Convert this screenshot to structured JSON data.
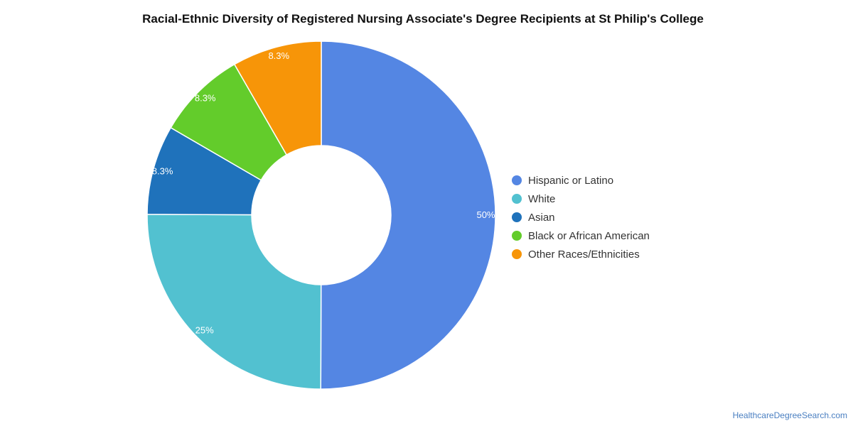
{
  "chart_data": {
    "type": "pie",
    "variant": "donut",
    "title": "Racial-Ethnic Diversity of Registered Nursing Associate's Degree Recipients at St Philip's College",
    "categories": [
      "Hispanic or Latino",
      "White",
      "Asian",
      "Black or African American",
      "Other Races/Ethnicities"
    ],
    "values": [
      50,
      25,
      8.3,
      8.3,
      8.3
    ],
    "labels": [
      "50%",
      "25%",
      "8.3%",
      "8.3%",
      "8.3%"
    ],
    "colors": [
      "#5486e3",
      "#52c1d0",
      "#1f72bb",
      "#63cc2b",
      "#f79508"
    ],
    "legend_position": "right"
  },
  "source": "HealthcareDegreeSearch.com"
}
